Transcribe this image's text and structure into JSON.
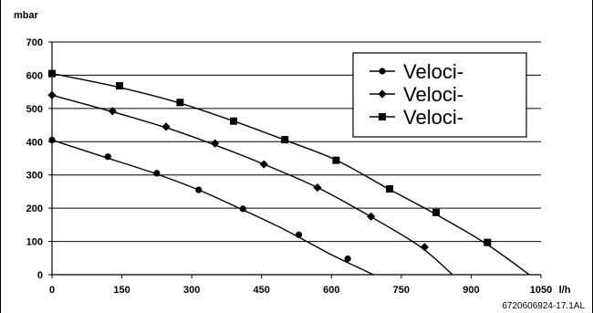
{
  "chart_data": {
    "type": "line",
    "ylabel": "mbar",
    "xlabel": "l/h",
    "xlim": [
      0,
      1050
    ],
    "ylim": [
      0,
      700
    ],
    "x_ticks": [
      "0",
      "150",
      "300",
      "450",
      "600",
      "750",
      "900",
      "1050"
    ],
    "y_ticks": [
      "0",
      "100",
      "200",
      "300",
      "400",
      "500",
      "600",
      "700"
    ],
    "grid": "horizontal",
    "legend_position": "top-right",
    "series": [
      {
        "name": "Veloci-",
        "marker": "circle",
        "curve": [
          [
            0,
            405
          ],
          [
            110,
            355
          ],
          [
            220,
            305
          ],
          [
            315,
            255
          ],
          [
            405,
            198
          ],
          [
            500,
            135
          ],
          [
            600,
            60
          ],
          [
            660,
            20
          ],
          [
            690,
            0
          ]
        ],
        "markers": [
          [
            0,
            405
          ],
          [
            120,
            355
          ],
          [
            225,
            305
          ],
          [
            315,
            255
          ],
          [
            410,
            198
          ],
          [
            530,
            120
          ],
          [
            635,
            48
          ]
        ]
      },
      {
        "name": "Veloci-",
        "marker": "diamond",
        "curve": [
          [
            0,
            540
          ],
          [
            130,
            490
          ],
          [
            250,
            440
          ],
          [
            350,
            390
          ],
          [
            450,
            335
          ],
          [
            570,
            262
          ],
          [
            680,
            178
          ],
          [
            790,
            85
          ],
          [
            860,
            0
          ]
        ],
        "markers": [
          [
            0,
            540
          ],
          [
            130,
            492
          ],
          [
            245,
            445
          ],
          [
            350,
            395
          ],
          [
            455,
            332
          ],
          [
            570,
            262
          ],
          [
            685,
            175
          ],
          [
            800,
            83
          ]
        ]
      },
      {
        "name": "Veloci-",
        "marker": "square",
        "curve": [
          [
            0,
            605
          ],
          [
            140,
            565
          ],
          [
            270,
            518
          ],
          [
            390,
            462
          ],
          [
            500,
            405
          ],
          [
            610,
            345
          ],
          [
            720,
            260
          ],
          [
            820,
            185
          ],
          [
            930,
            95
          ],
          [
            1025,
            0
          ]
        ],
        "markers": [
          [
            0,
            605
          ],
          [
            145,
            568
          ],
          [
            275,
            518
          ],
          [
            390,
            462
          ],
          [
            500,
            406
          ],
          [
            610,
            344
          ],
          [
            725,
            258
          ],
          [
            825,
            187
          ],
          [
            935,
            97
          ]
        ]
      }
    ],
    "footer_code": "6720606924-17.1AL"
  }
}
